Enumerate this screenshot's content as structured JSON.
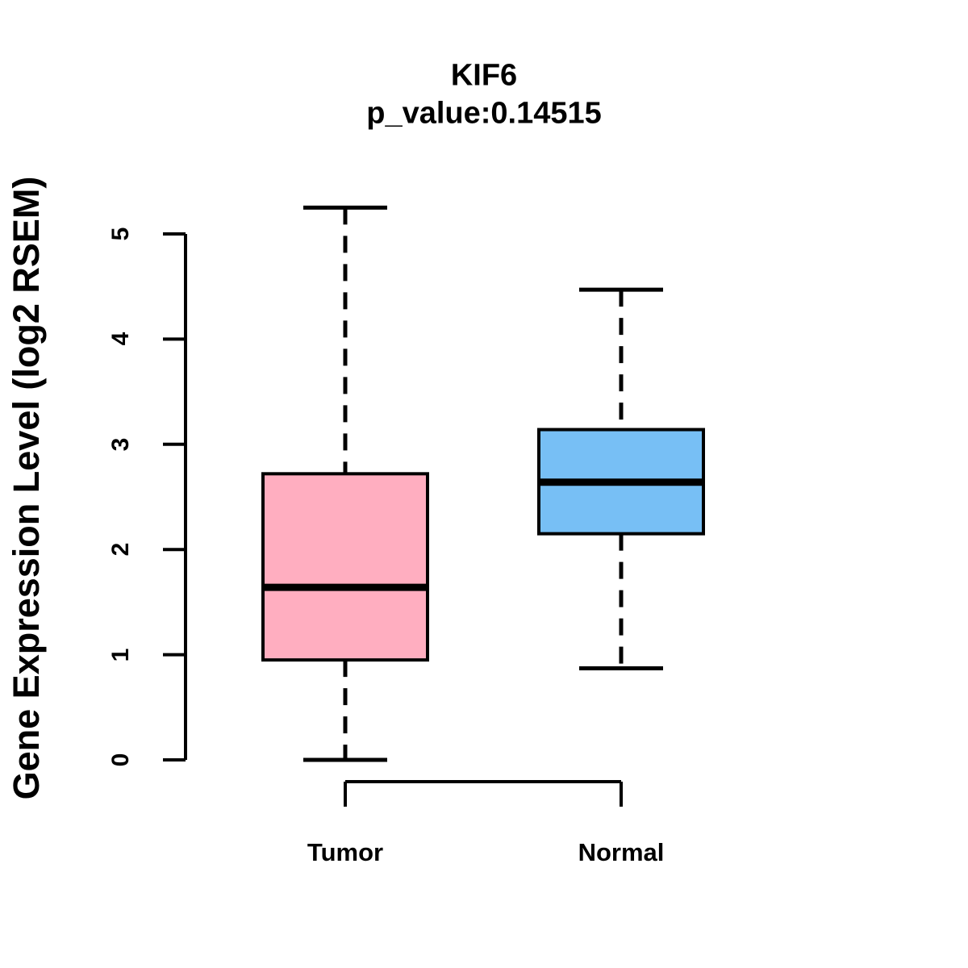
{
  "chart_data": {
    "type": "boxplot",
    "title": "KIF6",
    "subtitle": "p_value:0.14515",
    "p_value": 0.14515,
    "ylabel": "Gene Expression Level (log2 RSEM)",
    "ylim": [
      0,
      5
    ],
    "yticks": [
      0,
      1,
      2,
      3,
      4,
      5
    ],
    "grid": false,
    "legend": "none",
    "categories": [
      "Tumor",
      "Normal"
    ],
    "series": [
      {
        "name": "Tumor",
        "lower_whisker": 0.0,
        "q1": 0.95,
        "median": 1.64,
        "q3": 2.72,
        "upper_whisker": 5.25,
        "color": "#FFAEC0"
      },
      {
        "name": "Normal",
        "lower_whisker": 0.87,
        "q1": 2.15,
        "median": 2.64,
        "q3": 3.14,
        "upper_whisker": 4.47,
        "color": "#77BFF5"
      }
    ],
    "colors": {
      "tumor_fill": "#FFAEC0",
      "normal_fill": "#77BFF5",
      "stroke": "#000000",
      "background": "#FFFFFF"
    }
  }
}
